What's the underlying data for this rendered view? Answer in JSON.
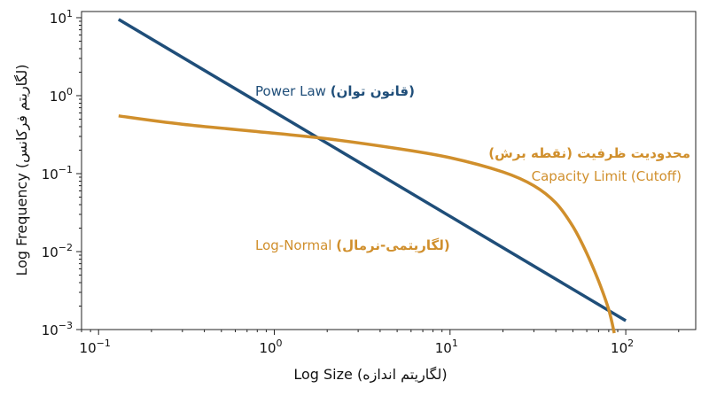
{
  "chart_data": {
    "type": "line",
    "xlabel": "Log Size (لگاریتم اندازه)",
    "ylabel": "Log Frequency (لگاریتم فرکانس)",
    "x_scale": "log",
    "y_scale": "log",
    "xlim": [
      0.08,
      250
    ],
    "ylim": [
      0.001,
      12
    ],
    "x_ticks": [
      {
        "value": 0.1,
        "base": "10",
        "exp": "−1"
      },
      {
        "value": 1,
        "base": "10",
        "exp": "0"
      },
      {
        "value": 10,
        "base": "10",
        "exp": "1"
      },
      {
        "value": 100,
        "base": "10",
        "exp": "2"
      }
    ],
    "y_ticks": [
      {
        "value": 0.001,
        "base": "10",
        "exp": "−3"
      },
      {
        "value": 0.01,
        "base": "10",
        "exp": "−2"
      },
      {
        "value": 0.1,
        "base": "10",
        "exp": "−1"
      },
      {
        "value": 1,
        "base": "10",
        "exp": "0"
      },
      {
        "value": 10,
        "base": "10",
        "exp": "1"
      }
    ],
    "grid": false,
    "series": [
      {
        "name": "Power Law (قانون توان)",
        "color": "#1f4e79",
        "x": [
          0.13,
          100
        ],
        "y": [
          9.5,
          0.0013
        ]
      },
      {
        "name": "Log-Normal (لگاریتمی-نرمال)",
        "color": "#d08f2c",
        "x": [
          0.13,
          0.3,
          1,
          2,
          5,
          10,
          20,
          30,
          40,
          50,
          60,
          70,
          80,
          86
        ],
        "y": [
          0.55,
          0.43,
          0.33,
          0.28,
          0.21,
          0.16,
          0.105,
          0.07,
          0.042,
          0.021,
          0.0095,
          0.0042,
          0.0018,
          0.0009
        ]
      }
    ],
    "annotations": {
      "power_law": {
        "en": "Power Law",
        "fa": "(قانون توان)",
        "color": "#1f4e79"
      },
      "log_normal": {
        "en": "Log-Normal",
        "fa": "(لگاریتمی-نرمال)",
        "color": "#d08f2c"
      },
      "cutoff_fa": {
        "text": "محدودیت ظرفیت (نقطه برش)",
        "color": "#d08f2c"
      },
      "cutoff_en": {
        "text": "Capacity Limit (Cutoff)",
        "color": "#d08f2c"
      }
    }
  }
}
